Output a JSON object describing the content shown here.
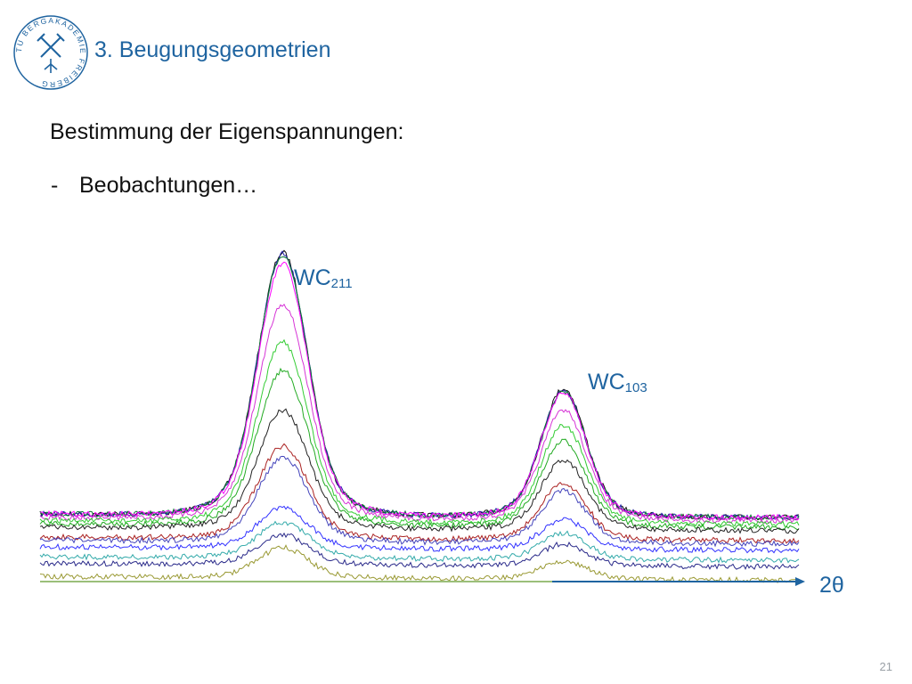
{
  "header": {
    "title": "3. Beugungsgeometrien",
    "logo_text": "TU BERGAKADEMIE FREIBERG"
  },
  "content": {
    "heading": "Bestimmung der Eigenspannungen:",
    "bullet_dash": "-",
    "bullet": "Beobachtungen…"
  },
  "chart_data": {
    "type": "line",
    "annotations": [
      {
        "main": "WC",
        "sub": "211"
      },
      {
        "main": "WC",
        "sub": "103"
      }
    ],
    "x_axis_label": "2θ",
    "peaks": [
      {
        "label": "WC211",
        "position": 0.32
      },
      {
        "label": "WC103",
        "position": 0.69
      }
    ],
    "series": [
      {
        "color": "#111111",
        "baseline": 0.0,
        "peak1": 263,
        "peak2": 128
      },
      {
        "color": "#2222aa",
        "baseline": 0.0,
        "peak1": 262,
        "peak2": 126
      },
      {
        "color": "#0a7a33",
        "baseline": 0.0,
        "peak1": 261,
        "peak2": 125
      },
      {
        "color": "#ff00ff",
        "baseline": 0.0,
        "peak1": 252,
        "peak2": 124
      },
      {
        "color": "#d633d6",
        "baseline": 2.0,
        "peak1": 215,
        "peak2": 110
      },
      {
        "color": "#33cc33",
        "baseline": 4.0,
        "peak1": 180,
        "peak2": 98
      },
      {
        "color": "#22aa22",
        "baseline": 6.0,
        "peak1": 155,
        "peak2": 85
      },
      {
        "color": "#222222",
        "baseline": 8.0,
        "peak1": 118,
        "peak2": 70
      },
      {
        "color": "#aa2222",
        "baseline": 14.0,
        "peak1": 92,
        "peak2": 56
      },
      {
        "color": "#4444bb",
        "baseline": 16.0,
        "peak1": 84,
        "peak2": 52
      },
      {
        "color": "#3333ff",
        "baseline": 20.0,
        "peak1": 40,
        "peak2": 30
      },
      {
        "color": "#33aaaa",
        "baseline": 26.0,
        "peak1": 36,
        "peak2": 26
      },
      {
        "color": "#2a2a8a",
        "baseline": 30.0,
        "peak1": 30,
        "peak2": 22
      },
      {
        "color": "#999933",
        "baseline": 38.0,
        "peak1": 30,
        "peak2": 18
      }
    ]
  },
  "footer": {
    "page_number": "21"
  }
}
